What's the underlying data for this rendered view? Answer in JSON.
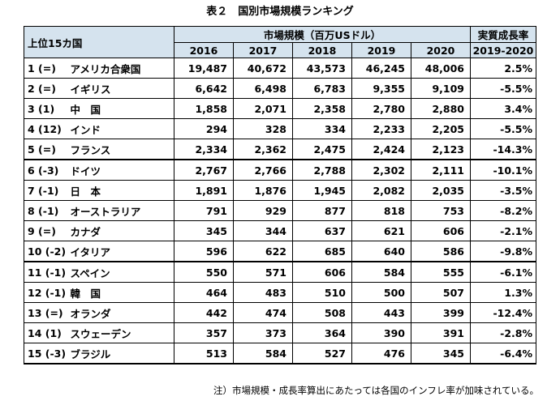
{
  "title": "表２　国別市場規模ランキング",
  "headers": {
    "rank_label": "上位15カ国",
    "market_size": "市場規模（百万USドル）",
    "years": [
      "2016",
      "2017",
      "2018",
      "2019",
      "2020"
    ],
    "growth": "実質成長率",
    "growth_period": "2019-2020"
  },
  "rows": [
    {
      "rank": "1 (=)",
      "country": "アメリカ合衆国",
      "values": [
        "19,487",
        "40,672",
        "43,573",
        "46,245",
        "48,006"
      ],
      "growth": "2.5%"
    },
    {
      "rank": "2 (=)",
      "country": "イギリス",
      "values": [
        "6,642",
        "6,498",
        "6,783",
        "9,355",
        "9,109"
      ],
      "growth": "-5.5%"
    },
    {
      "rank": "3 (1)",
      "country": "中　国",
      "values": [
        "1,858",
        "2,071",
        "2,358",
        "2,780",
        "2,880"
      ],
      "growth": "3.4%"
    },
    {
      "rank": "4 (12)",
      "country": "インド",
      "values": [
        "294",
        "328",
        "334",
        "2,233",
        "2,205"
      ],
      "growth": "-5.5%"
    },
    {
      "rank": "5 (=)",
      "country": "フランス",
      "values": [
        "2,334",
        "2,362",
        "2,475",
        "2,424",
        "2,123"
      ],
      "growth": "-14.3%"
    },
    {
      "rank": "6 (-3)",
      "country": "ドイツ",
      "values": [
        "2,767",
        "2,766",
        "2,788",
        "2,302",
        "2,111"
      ],
      "growth": "-10.1%"
    },
    {
      "rank": "7 (-1)",
      "country": "日　本",
      "values": [
        "1,891",
        "1,876",
        "1,945",
        "2,082",
        "2,035"
      ],
      "growth": "-3.5%"
    },
    {
      "rank": "8 (-1)",
      "country": "オーストラリア",
      "values": [
        "791",
        "929",
        "877",
        "818",
        "753"
      ],
      "growth": "-8.2%"
    },
    {
      "rank": "9 (=)",
      "country": "カナダ",
      "values": [
        "345",
        "344",
        "637",
        "621",
        "606"
      ],
      "growth": "-2.1%"
    },
    {
      "rank": "10 (-2)",
      "country": "イタリア",
      "values": [
        "596",
        "622",
        "685",
        "640",
        "586"
      ],
      "growth": "-9.8%"
    },
    {
      "rank": "11 (-1)",
      "country": "スペイン",
      "values": [
        "550",
        "571",
        "606",
        "584",
        "555"
      ],
      "growth": "-6.1%"
    },
    {
      "rank": "12 (-1)",
      "country": "韓　国",
      "values": [
        "464",
        "483",
        "510",
        "500",
        "507"
      ],
      "growth": "1.3%"
    },
    {
      "rank": "13 (=)",
      "country": "オランダ",
      "values": [
        "442",
        "474",
        "508",
        "443",
        "399"
      ],
      "growth": "-12.4%"
    },
    {
      "rank": "14 (1)",
      "country": "スウェーデン",
      "values": [
        "357",
        "373",
        "364",
        "390",
        "391"
      ],
      "growth": "-2.8%"
    },
    {
      "rank": "15 (-3)",
      "country": "ブラジル",
      "values": [
        "513",
        "584",
        "527",
        "476",
        "345"
      ],
      "growth": "-6.4%"
    }
  ],
  "note": "注）市場規模・成長率算出にあたっては各国のインフレ率が加味されている。"
}
